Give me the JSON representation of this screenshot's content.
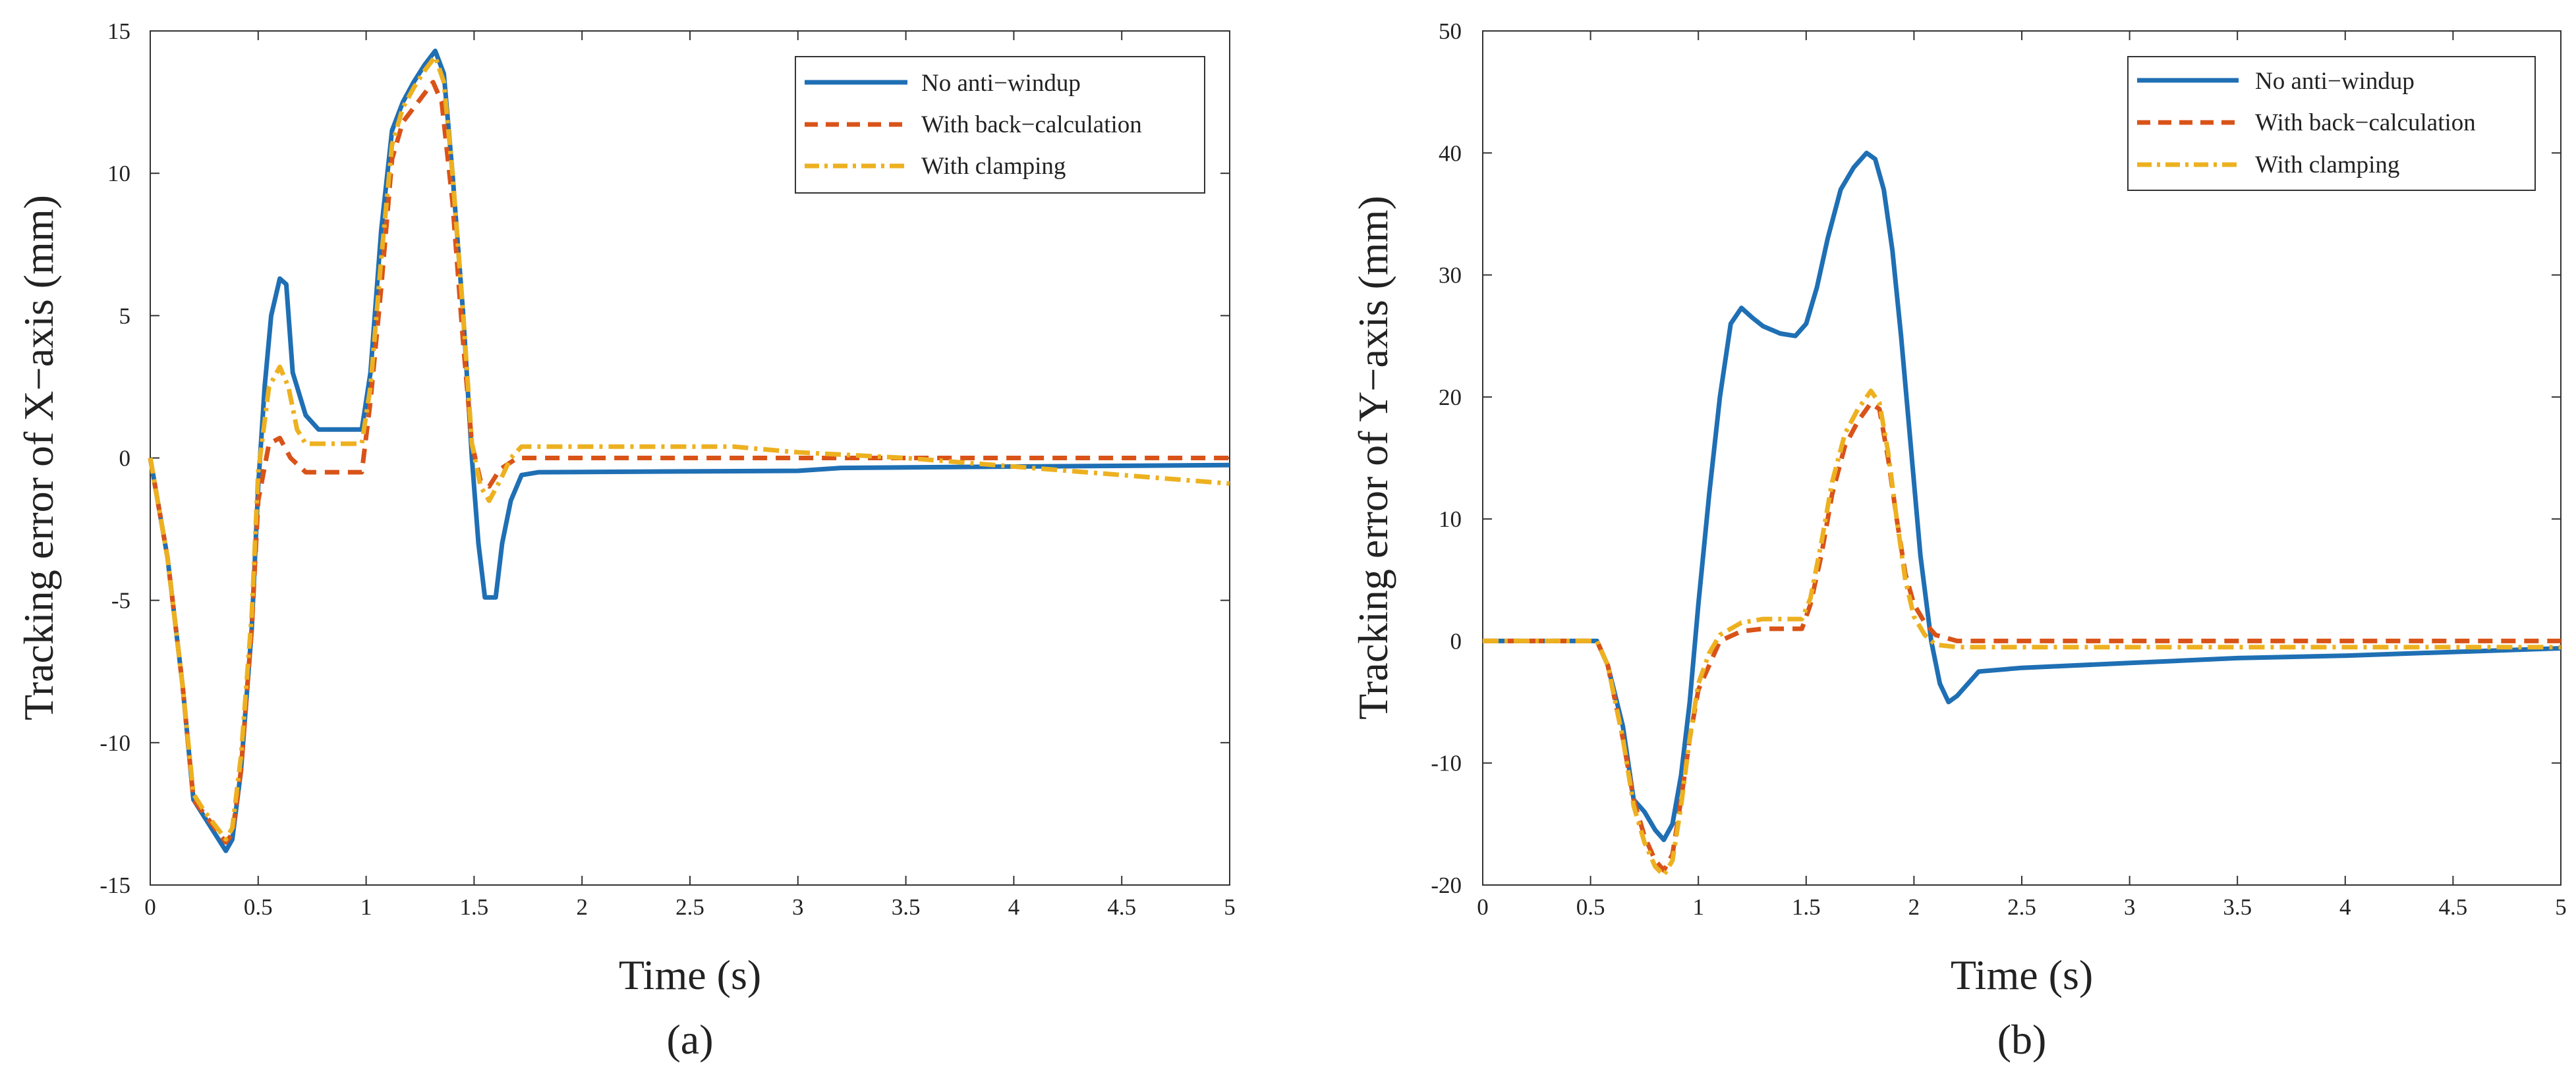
{
  "chart_data": [
    {
      "type": "line",
      "panel_label": "(a)",
      "xlabel": "Time (s)",
      "ylabel": "Tracking error of X−axis  (mm)",
      "xlim": [
        0,
        5
      ],
      "ylim": [
        -15,
        15
      ],
      "x_ticks": [
        0,
        0.5,
        1,
        1.5,
        2,
        2.5,
        3,
        3.5,
        4,
        4.5,
        5
      ],
      "x_tick_labels": [
        "0",
        "0.5",
        "1",
        "1.5",
        "2",
        "2.5",
        "3",
        "3.5",
        "4",
        "4.5",
        "5"
      ],
      "y_ticks": [
        -15,
        -10,
        -5,
        0,
        5,
        10,
        15
      ],
      "y_tick_labels": [
        "-15",
        "-10",
        "-5",
        "0",
        "5",
        "10",
        "15"
      ],
      "legend_position": "top-right",
      "series": [
        {
          "name": "No anti−windup",
          "color": "#1f6fb4",
          "dash": "solid",
          "points": [
            [
              0,
              0
            ],
            [
              0.08,
              -3.5
            ],
            [
              0.15,
              -8
            ],
            [
              0.2,
              -12
            ],
            [
              0.25,
              -12.6
            ],
            [
              0.3,
              -13.2
            ],
            [
              0.35,
              -13.8
            ],
            [
              0.38,
              -13.4
            ],
            [
              0.42,
              -11
            ],
            [
              0.47,
              -6
            ],
            [
              0.5,
              -1
            ],
            [
              0.53,
              2.5
            ],
            [
              0.56,
              5
            ],
            [
              0.6,
              6.3
            ],
            [
              0.63,
              6.1
            ],
            [
              0.66,
              3
            ],
            [
              0.72,
              1.5
            ],
            [
              0.78,
              1
            ],
            [
              0.85,
              1
            ],
            [
              0.98,
              1
            ],
            [
              1.02,
              3
            ],
            [
              1.07,
              8
            ],
            [
              1.12,
              11.5
            ],
            [
              1.17,
              12.5
            ],
            [
              1.22,
              13.2
            ],
            [
              1.27,
              13.8
            ],
            [
              1.32,
              14.3
            ],
            [
              1.36,
              13.5
            ],
            [
              1.4,
              10
            ],
            [
              1.45,
              5
            ],
            [
              1.49,
              0
            ],
            [
              1.52,
              -3
            ],
            [
              1.55,
              -4.9
            ],
            [
              1.6,
              -4.9
            ],
            [
              1.63,
              -3
            ],
            [
              1.67,
              -1.5
            ],
            [
              1.72,
              -0.6
            ],
            [
              1.8,
              -0.5
            ],
            [
              3,
              -0.45
            ],
            [
              3.2,
              -0.35
            ],
            [
              4,
              -0.3
            ],
            [
              5,
              -0.25
            ]
          ]
        },
        {
          "name": "With back−calculation",
          "color": "#d95319",
          "dash": "dashed",
          "points": [
            [
              0,
              0
            ],
            [
              0.08,
              -3.5
            ],
            [
              0.15,
              -8
            ],
            [
              0.2,
              -12
            ],
            [
              0.25,
              -12.5
            ],
            [
              0.3,
              -13
            ],
            [
              0.35,
              -13.5
            ],
            [
              0.38,
              -13.2
            ],
            [
              0.42,
              -11
            ],
            [
              0.47,
              -6
            ],
            [
              0.5,
              -1.5
            ],
            [
              0.55,
              0.5
            ],
            [
              0.6,
              0.7
            ],
            [
              0.65,
              0
            ],
            [
              0.72,
              -0.5
            ],
            [
              0.85,
              -0.5
            ],
            [
              0.98,
              -0.5
            ],
            [
              1.02,
              2
            ],
            [
              1.07,
              6
            ],
            [
              1.12,
              10.5
            ],
            [
              1.17,
              11.8
            ],
            [
              1.22,
              12.3
            ],
            [
              1.27,
              12.8
            ],
            [
              1.31,
              13.2
            ],
            [
              1.35,
              12.5
            ],
            [
              1.4,
              9
            ],
            [
              1.45,
              4
            ],
            [
              1.49,
              0.5
            ],
            [
              1.53,
              -0.8
            ],
            [
              1.57,
              -1
            ],
            [
              1.62,
              -0.4
            ],
            [
              1.7,
              0
            ],
            [
              2,
              0
            ],
            [
              3,
              0
            ],
            [
              4,
              0
            ],
            [
              5,
              0
            ]
          ]
        },
        {
          "name": "With clamping",
          "color": "#edb120",
          "dash": "dashdot",
          "points": [
            [
              0,
              0
            ],
            [
              0.08,
              -3.5
            ],
            [
              0.15,
              -8
            ],
            [
              0.2,
              -11.8
            ],
            [
              0.25,
              -12.4
            ],
            [
              0.3,
              -12.9
            ],
            [
              0.35,
              -13.4
            ],
            [
              0.38,
              -13
            ],
            [
              0.42,
              -10.5
            ],
            [
              0.47,
              -5.5
            ],
            [
              0.5,
              -0.5
            ],
            [
              0.55,
              2.5
            ],
            [
              0.6,
              3.2
            ],
            [
              0.64,
              2.5
            ],
            [
              0.68,
              1
            ],
            [
              0.72,
              0.5
            ],
            [
              0.85,
              0.5
            ],
            [
              0.98,
              0.5
            ],
            [
              1.02,
              2.5
            ],
            [
              1.07,
              7
            ],
            [
              1.12,
              11
            ],
            [
              1.17,
              12.3
            ],
            [
              1.22,
              13
            ],
            [
              1.27,
              13.6
            ],
            [
              1.32,
              14.1
            ],
            [
              1.36,
              13.2
            ],
            [
              1.4,
              10
            ],
            [
              1.45,
              5
            ],
            [
              1.49,
              0.5
            ],
            [
              1.53,
              -1
            ],
            [
              1.57,
              -1.5
            ],
            [
              1.62,
              -0.8
            ],
            [
              1.67,
              0
            ],
            [
              1.72,
              0.4
            ],
            [
              2,
              0.4
            ],
            [
              2.7,
              0.4
            ],
            [
              3,
              0.2
            ],
            [
              3.5,
              0
            ],
            [
              4,
              -0.3
            ],
            [
              4.5,
              -0.6
            ],
            [
              5,
              -0.9
            ]
          ]
        }
      ]
    },
    {
      "type": "line",
      "panel_label": "(b)",
      "xlabel": "Time (s)",
      "ylabel": "Tracking error of Y−axis  (mm)",
      "xlim": [
        0,
        5
      ],
      "ylim": [
        -20,
        50
      ],
      "x_ticks": [
        0,
        0.5,
        1,
        1.5,
        2,
        2.5,
        3,
        3.5,
        4,
        4.5,
        5
      ],
      "x_tick_labels": [
        "0",
        "0.5",
        "1",
        "1.5",
        "2",
        "2.5",
        "3",
        "3.5",
        "4",
        "4.5",
        "5"
      ],
      "y_ticks": [
        -20,
        -10,
        0,
        10,
        20,
        30,
        40,
        50
      ],
      "y_tick_labels": [
        "-20",
        "-10",
        "0",
        "10",
        "20",
        "30",
        "40",
        "50"
      ],
      "legend_position": "top-right",
      "series": [
        {
          "name": "No anti−windup",
          "color": "#1f6fb4",
          "dash": "solid",
          "points": [
            [
              0,
              0
            ],
            [
              0.5,
              0
            ],
            [
              0.53,
              0
            ],
            [
              0.58,
              -2
            ],
            [
              0.65,
              -7
            ],
            [
              0.7,
              -13
            ],
            [
              0.75,
              -14
            ],
            [
              0.8,
              -15.5
            ],
            [
              0.84,
              -16.3
            ],
            [
              0.88,
              -15
            ],
            [
              0.92,
              -11
            ],
            [
              0.96,
              -5
            ],
            [
              1,
              3
            ],
            [
              1.05,
              12
            ],
            [
              1.1,
              20
            ],
            [
              1.15,
              26
            ],
            [
              1.2,
              27.3
            ],
            [
              1.25,
              26.5
            ],
            [
              1.3,
              25.8
            ],
            [
              1.38,
              25.2
            ],
            [
              1.45,
              25
            ],
            [
              1.5,
              26
            ],
            [
              1.55,
              29
            ],
            [
              1.6,
              33
            ],
            [
              1.66,
              37
            ],
            [
              1.72,
              38.8
            ],
            [
              1.78,
              40
            ],
            [
              1.82,
              39.5
            ],
            [
              1.86,
              37
            ],
            [
              1.9,
              32
            ],
            [
              1.94,
              25
            ],
            [
              1.98,
              17
            ],
            [
              2.03,
              7
            ],
            [
              2.08,
              0
            ],
            [
              2.12,
              -3.5
            ],
            [
              2.16,
              -5
            ],
            [
              2.2,
              -4.5
            ],
            [
              2.3,
              -2.5
            ],
            [
              2.5,
              -2.2
            ],
            [
              3,
              -1.8
            ],
            [
              3.5,
              -1.4
            ],
            [
              4,
              -1.2
            ],
            [
              5,
              -0.6
            ]
          ]
        },
        {
          "name": "With back−calculation",
          "color": "#d95319",
          "dash": "dashed",
          "points": [
            [
              0,
              0
            ],
            [
              0.5,
              0
            ],
            [
              0.53,
              0
            ],
            [
              0.58,
              -2
            ],
            [
              0.65,
              -8
            ],
            [
              0.7,
              -13
            ],
            [
              0.75,
              -16
            ],
            [
              0.8,
              -18
            ],
            [
              0.84,
              -18.8
            ],
            [
              0.88,
              -17.5
            ],
            [
              0.92,
              -13
            ],
            [
              0.96,
              -8
            ],
            [
              1,
              -4
            ],
            [
              1.05,
              -2
            ],
            [
              1.1,
              0
            ],
            [
              1.2,
              0.8
            ],
            [
              1.3,
              1
            ],
            [
              1.4,
              1
            ],
            [
              1.48,
              1
            ],
            [
              1.52,
              3
            ],
            [
              1.57,
              7
            ],
            [
              1.62,
              12
            ],
            [
              1.68,
              16
            ],
            [
              1.74,
              18
            ],
            [
              1.8,
              19.5
            ],
            [
              1.84,
              19
            ],
            [
              1.88,
              15
            ],
            [
              1.92,
              10
            ],
            [
              1.96,
              5.5
            ],
            [
              2,
              3
            ],
            [
              2.05,
              1.5
            ],
            [
              2.1,
              0.5
            ],
            [
              2.2,
              0
            ],
            [
              3,
              0
            ],
            [
              4,
              0
            ],
            [
              5,
              0
            ]
          ]
        },
        {
          "name": "With clamping",
          "color": "#edb120",
          "dash": "dashdot",
          "points": [
            [
              0,
              0
            ],
            [
              0.5,
              0
            ],
            [
              0.53,
              0
            ],
            [
              0.58,
              -2
            ],
            [
              0.65,
              -8
            ],
            [
              0.7,
              -13.5
            ],
            [
              0.75,
              -16.5
            ],
            [
              0.8,
              -18.5
            ],
            [
              0.84,
              -19.2
            ],
            [
              0.88,
              -18
            ],
            [
              0.92,
              -13.5
            ],
            [
              0.96,
              -8
            ],
            [
              1,
              -3.5
            ],
            [
              1.05,
              -1
            ],
            [
              1.1,
              0.5
            ],
            [
              1.2,
              1.5
            ],
            [
              1.3,
              1.8
            ],
            [
              1.4,
              1.8
            ],
            [
              1.48,
              1.8
            ],
            [
              1.52,
              3.5
            ],
            [
              1.57,
              8
            ],
            [
              1.62,
              13
            ],
            [
              1.68,
              17
            ],
            [
              1.74,
              19
            ],
            [
              1.8,
              20.5
            ],
            [
              1.84,
              19.5
            ],
            [
              1.88,
              15.5
            ],
            [
              1.92,
              10
            ],
            [
              1.96,
              5
            ],
            [
              2,
              2
            ],
            [
              2.05,
              0.5
            ],
            [
              2.1,
              -0.3
            ],
            [
              2.2,
              -0.5
            ],
            [
              3,
              -0.5
            ],
            [
              4,
              -0.5
            ],
            [
              5,
              -0.5
            ]
          ]
        }
      ]
    }
  ]
}
